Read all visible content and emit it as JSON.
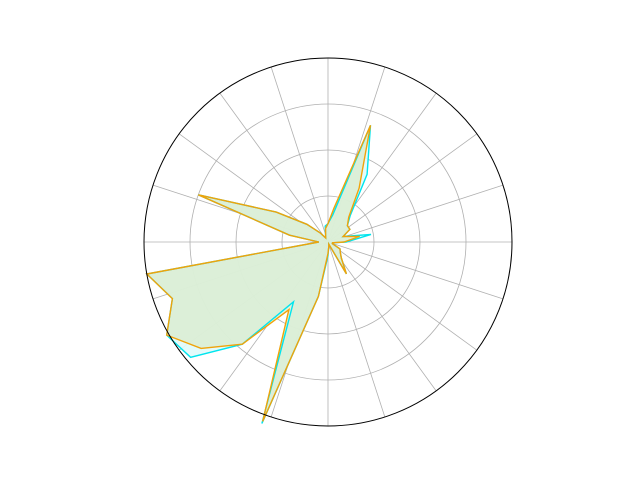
{
  "chart_data": {
    "type": "radar",
    "title": "",
    "angular_ticks": 20,
    "radial_ticks": [
      1,
      2,
      3,
      4
    ],
    "rmax": 4,
    "tick_labels_visible": false,
    "grid": true,
    "legend": "none",
    "colors": {
      "frame": "#000000",
      "grid": "#b0b0b0",
      "fill": "#d9ebcc",
      "series_a": "#00e5ee",
      "series_b": "#f0a30a"
    },
    "series": [
      {
        "values": [
          0.4,
          0.95,
          0.35,
          0.55,
          0.55,
          0.75,
          1.7,
          2.7,
          0.6,
          0.4,
          0.35,
          0.15,
          0.1,
          0.25,
          0.6,
          1.3,
          3.0,
          0.85,
          0.2,
          4.0,
          3.6,
          4.05,
          3.9,
          2.9,
          1.5,
          4.2,
          1.2,
          0.3,
          0.1,
          0.05,
          0.8,
          0.45,
          0.35,
          0.3,
          0.1,
          0.1
        ]
      },
      {
        "values": [
          0.35,
          0.7,
          0.35,
          0.55,
          0.55,
          0.7,
          1.35,
          2.7,
          0.75,
          0.4,
          0.3,
          0.15,
          0.1,
          0.25,
          0.6,
          1.3,
          3.0,
          0.85,
          0.2,
          4.0,
          3.6,
          4.05,
          3.6,
          2.9,
          1.7,
          4.15,
          1.2,
          0.25,
          0.1,
          0.05,
          0.8,
          0.45,
          0.35,
          0.3,
          0.1,
          0.1
        ]
      }
    ]
  }
}
